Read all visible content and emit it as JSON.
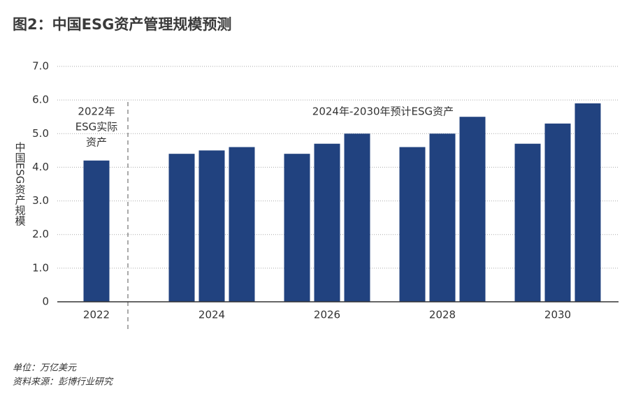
{
  "chart_data": {
    "type": "bar",
    "title": "图2：中国ESG资产管理规模预测",
    "ylabel": "中国ESG资产规模",
    "groups": [
      {
        "label": "2022",
        "values": [
          4.2
        ]
      },
      {
        "label": "2024",
        "values": [
          4.4,
          4.5,
          4.6
        ]
      },
      {
        "label": "2026",
        "values": [
          4.4,
          4.7,
          5.0
        ]
      },
      {
        "label": "2028",
        "values": [
          4.6,
          5.0,
          5.5
        ]
      },
      {
        "label": "2030",
        "values": [
          4.7,
          5.3,
          5.9
        ]
      }
    ],
    "color": "#21427f",
    "ylim": [
      0,
      7
    ],
    "yticks": [
      {
        "value": 7,
        "label": "7.0"
      },
      {
        "value": 6,
        "label": "6.0"
      },
      {
        "value": 5,
        "label": "5.0"
      },
      {
        "value": 4,
        "label": "4.0"
      },
      {
        "value": 3,
        "label": "3.0"
      },
      {
        "value": 2,
        "label": "2.0"
      },
      {
        "value": 1,
        "label": "1.0"
      },
      0
    ],
    "grid": true,
    "annotations": [
      {
        "lines": [
          "2022年",
          "ESG实际",
          "资产"
        ]
      },
      {
        "lines": [
          "2024年-2030年预计ESG资产"
        ]
      }
    ],
    "notes": [
      "单位：万亿美元",
      "资料来源：彭博行业研究"
    ]
  }
}
